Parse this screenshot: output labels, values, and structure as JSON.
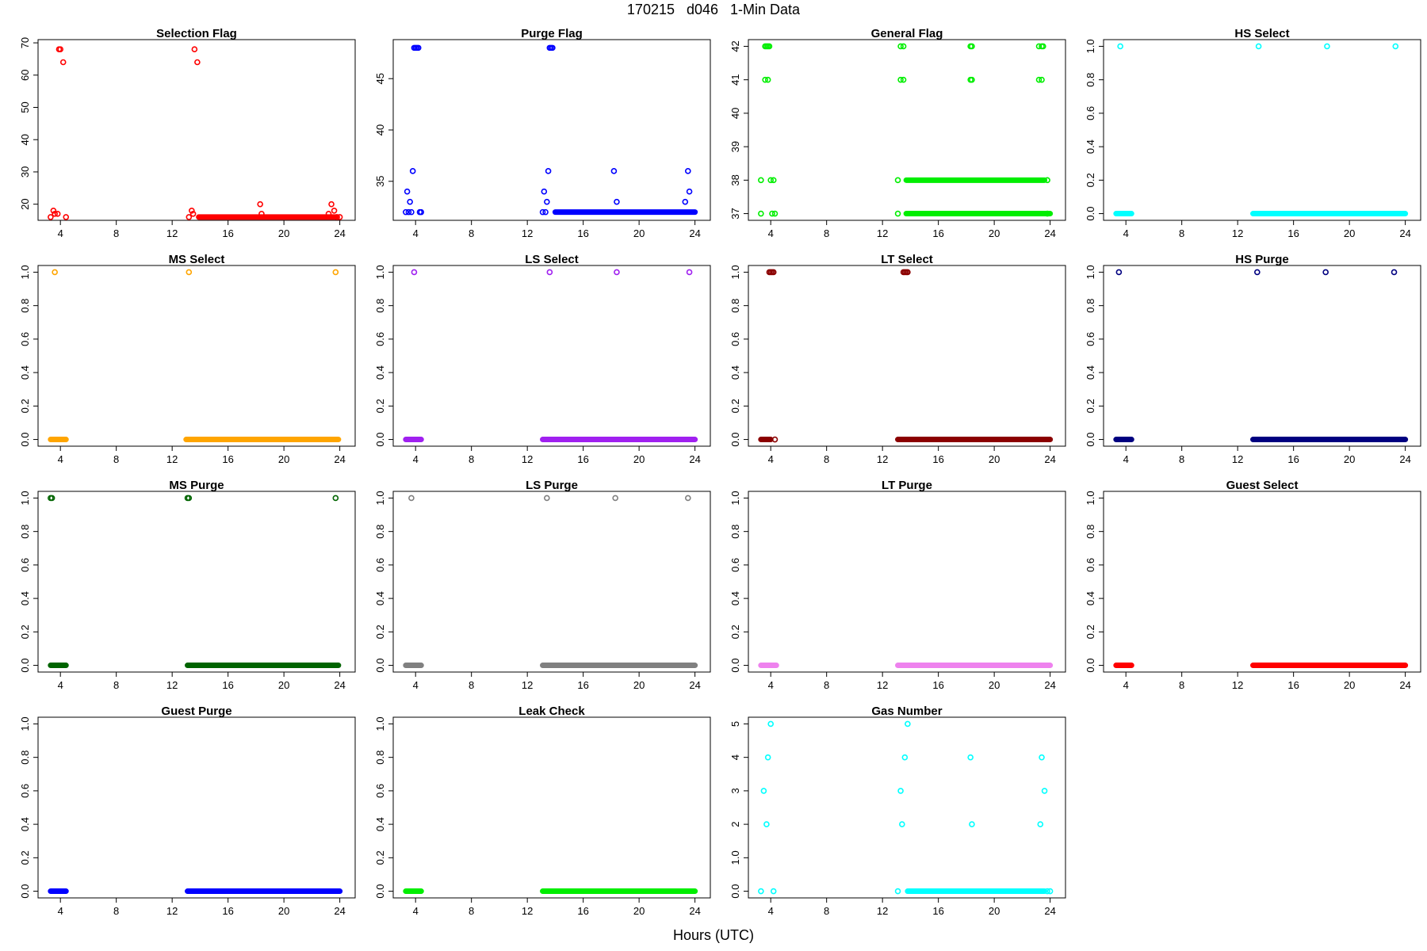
{
  "figure": {
    "title": "170215   d046   1-Min Data",
    "xlabel": "Hours (UTC)"
  },
  "chart_data": [
    {
      "type": "scatter",
      "title": "Selection Flag",
      "color": "#ff0000",
      "xlim": [
        2.4,
        25.1
      ],
      "xticks": [
        4,
        8,
        12,
        16,
        20,
        24
      ],
      "ylim": [
        15,
        71
      ],
      "yticks": [
        20,
        30,
        40,
        50,
        60,
        70
      ],
      "series": [
        {
          "kind": "points",
          "x": [
            3.3,
            3.5,
            3.6,
            3.8,
            3.9,
            4.0,
            4.2,
            4.4,
            13.2,
            13.4,
            13.5,
            13.6,
            13.8,
            18.3,
            18.4,
            23.2,
            23.4,
            23.6,
            23.8,
            24.0
          ],
          "y": [
            16,
            18,
            17,
            17,
            68,
            68,
            64,
            16,
            16,
            18,
            17,
            68,
            64,
            20,
            17,
            17,
            20,
            18,
            16,
            16
          ]
        },
        {
          "kind": "band",
          "x0": 13.9,
          "x1": 23.8,
          "y": 16
        }
      ]
    },
    {
      "type": "scatter",
      "title": "Purge Flag",
      "color": "#0000ff",
      "xlim": [
        2.4,
        25.1
      ],
      "xticks": [
        4,
        8,
        12,
        16,
        20,
        24
      ],
      "ylim": [
        31.2,
        48.8
      ],
      "yticks": [
        35,
        40,
        45
      ],
      "series": [
        {
          "kind": "points",
          "x": [
            3.3,
            3.4,
            3.5,
            3.6,
            3.7,
            3.8,
            3.9,
            4.0,
            4.1,
            4.2,
            4.3,
            4.4,
            13.1,
            13.2,
            13.3,
            13.4,
            13.5,
            13.6,
            13.7,
            13.8,
            18.2,
            18.4,
            23.3,
            23.5,
            23.6
          ],
          "y": [
            32,
            34,
            32,
            33,
            32,
            36,
            48,
            48,
            48,
            48,
            32,
            32,
            32,
            34,
            32,
            33,
            36,
            48,
            48,
            48,
            36,
            33,
            33,
            36,
            34
          ]
        },
        {
          "kind": "band",
          "x0": 14.0,
          "x1": 24.0,
          "y": 32
        }
      ]
    },
    {
      "type": "scatter",
      "title": "General Flag",
      "color": "#00ee00",
      "xlim": [
        2.4,
        25.1
      ],
      "xticks": [
        4,
        8,
        12,
        16,
        20,
        24
      ],
      "ylim": [
        36.8,
        42.2
      ],
      "yticks": [
        37,
        38,
        39,
        40,
        41,
        42
      ],
      "series": [
        {
          "kind": "points",
          "x": [
            3.3,
            3.3,
            3.6,
            3.7,
            3.8,
            3.9,
            3.6,
            3.8,
            4.0,
            4.1,
            4.2,
            4.3,
            13.1,
            13.1,
            13.3,
            13.5,
            13.3,
            13.5,
            18.3,
            18.4,
            18.3,
            18.4,
            23.2,
            23.4,
            23.5,
            23.2,
            23.4,
            23.8,
            23.8
          ],
          "y": [
            38,
            37,
            42,
            42,
            42,
            42,
            41,
            41,
            38,
            37,
            38,
            37,
            38,
            37,
            42,
            42,
            41,
            41,
            42,
            42,
            41,
            41,
            42,
            42,
            42,
            41,
            41,
            38,
            37
          ]
        },
        {
          "kind": "band",
          "x0": 13.7,
          "x1": 23.6,
          "y": 38
        },
        {
          "kind": "band",
          "x0": 13.7,
          "x1": 24.0,
          "y": 37
        }
      ]
    },
    {
      "type": "scatter",
      "title": "HS Select",
      "color": "#00ffff",
      "xlim": [
        2.4,
        25.1
      ],
      "xticks": [
        4,
        8,
        12,
        16,
        20,
        24
      ],
      "ylim": [
        -0.04,
        1.04
      ],
      "yticks": [
        0,
        0.2,
        0.4,
        0.6,
        0.8,
        1.0
      ],
      "series": [
        {
          "kind": "points",
          "x": [
            3.6,
            13.5,
            18.4,
            23.3
          ],
          "y": [
            1,
            1,
            1,
            1
          ]
        },
        {
          "kind": "band",
          "x0": 3.3,
          "x1": 4.4,
          "y": 0
        },
        {
          "kind": "band",
          "x0": 13.1,
          "x1": 24.0,
          "y": 0
        }
      ]
    },
    {
      "type": "scatter",
      "title": "MS Select",
      "color": "#ffa500",
      "xlim": [
        2.4,
        25.1
      ],
      "xticks": [
        4,
        8,
        12,
        16,
        20,
        24
      ],
      "ylim": [
        -0.04,
        1.04
      ],
      "yticks": [
        0,
        0.2,
        0.4,
        0.6,
        0.8,
        1.0
      ],
      "series": [
        {
          "kind": "points",
          "x": [
            3.6,
            13.2,
            23.7
          ],
          "y": [
            1,
            1,
            1
          ]
        },
        {
          "kind": "band",
          "x0": 3.3,
          "x1": 4.4,
          "y": 0
        },
        {
          "kind": "band",
          "x0": 13.0,
          "x1": 23.9,
          "y": 0
        }
      ]
    },
    {
      "type": "scatter",
      "title": "LS Select",
      "color": "#a020f0",
      "xlim": [
        2.4,
        25.1
      ],
      "xticks": [
        4,
        8,
        12,
        16,
        20,
        24
      ],
      "ylim": [
        -0.04,
        1.04
      ],
      "yticks": [
        0,
        0.2,
        0.4,
        0.6,
        0.8,
        1.0
      ],
      "series": [
        {
          "kind": "points",
          "x": [
            3.9,
            13.6,
            18.4,
            23.6
          ],
          "y": [
            1,
            1,
            1,
            1
          ]
        },
        {
          "kind": "band",
          "x0": 3.3,
          "x1": 4.4,
          "y": 0
        },
        {
          "kind": "band",
          "x0": 13.1,
          "x1": 24.0,
          "y": 0
        }
      ]
    },
    {
      "type": "scatter",
      "title": "LT Select",
      "color": "#8b0000",
      "xlim": [
        2.4,
        25.1
      ],
      "xticks": [
        4,
        8,
        12,
        16,
        20,
        24
      ],
      "ylim": [
        -0.04,
        1.04
      ],
      "yticks": [
        0,
        0.2,
        0.4,
        0.6,
        0.8,
        1.0
      ],
      "series": [
        {
          "kind": "points",
          "x": [
            3.9,
            4.0,
            4.1,
            4.2,
            4.3,
            13.5,
            13.6,
            13.7,
            13.8
          ],
          "y": [
            1,
            1,
            1,
            1,
            0,
            1,
            1,
            1,
            1
          ]
        },
        {
          "kind": "band",
          "x0": 3.3,
          "x1": 4.0,
          "y": 0
        },
        {
          "kind": "band",
          "x0": 13.1,
          "x1": 24.0,
          "y": 0
        }
      ]
    },
    {
      "type": "scatter",
      "title": "HS Purge",
      "color": "#000080",
      "xlim": [
        2.4,
        25.1
      ],
      "xticks": [
        4,
        8,
        12,
        16,
        20,
        24
      ],
      "ylim": [
        -0.04,
        1.04
      ],
      "yticks": [
        0,
        0.2,
        0.4,
        0.6,
        0.8,
        1.0
      ],
      "series": [
        {
          "kind": "points",
          "x": [
            3.5,
            13.4,
            18.3,
            23.2
          ],
          "y": [
            1,
            1,
            1,
            1
          ]
        },
        {
          "kind": "band",
          "x0": 3.3,
          "x1": 4.4,
          "y": 0
        },
        {
          "kind": "band",
          "x0": 13.1,
          "x1": 24.0,
          "y": 0
        }
      ]
    },
    {
      "type": "scatter",
      "title": "MS Purge",
      "color": "#006400",
      "xlim": [
        2.4,
        25.1
      ],
      "xticks": [
        4,
        8,
        12,
        16,
        20,
        24
      ],
      "ylim": [
        -0.04,
        1.04
      ],
      "yticks": [
        0,
        0.2,
        0.4,
        0.6,
        0.8,
        1.0
      ],
      "series": [
        {
          "kind": "points",
          "x": [
            3.3,
            3.4,
            13.1,
            13.2,
            23.7
          ],
          "y": [
            1,
            1,
            1,
            1,
            1
          ]
        },
        {
          "kind": "band",
          "x0": 3.3,
          "x1": 4.4,
          "y": 0
        },
        {
          "kind": "band",
          "x0": 13.1,
          "x1": 23.9,
          "y": 0
        }
      ]
    },
    {
      "type": "scatter",
      "title": "LS Purge",
      "color": "#808080",
      "xlim": [
        2.4,
        25.1
      ],
      "xticks": [
        4,
        8,
        12,
        16,
        20,
        24
      ],
      "ylim": [
        -0.04,
        1.04
      ],
      "yticks": [
        0,
        0.2,
        0.4,
        0.6,
        0.8,
        1.0
      ],
      "series": [
        {
          "kind": "points",
          "x": [
            3.7,
            13.4,
            18.3,
            23.5
          ],
          "y": [
            1,
            1,
            1,
            1
          ]
        },
        {
          "kind": "band",
          "x0": 3.3,
          "x1": 4.4,
          "y": 0
        },
        {
          "kind": "band",
          "x0": 13.1,
          "x1": 24.0,
          "y": 0
        }
      ]
    },
    {
      "type": "scatter",
      "title": "LT Purge",
      "color": "#ee82ee",
      "xlim": [
        2.4,
        25.1
      ],
      "xticks": [
        4,
        8,
        12,
        16,
        20,
        24
      ],
      "ylim": [
        -0.04,
        1.04
      ],
      "yticks": [
        0,
        0.2,
        0.4,
        0.6,
        0.8,
        1.0
      ],
      "series": [
        {
          "kind": "band",
          "x0": 3.3,
          "x1": 4.4,
          "y": 0
        },
        {
          "kind": "band",
          "x0": 13.1,
          "x1": 24.0,
          "y": 0
        }
      ]
    },
    {
      "type": "scatter",
      "title": "Guest Select",
      "color": "#ff0000",
      "xlim": [
        2.4,
        25.1
      ],
      "xticks": [
        4,
        8,
        12,
        16,
        20,
        24
      ],
      "ylim": [
        -0.04,
        1.04
      ],
      "yticks": [
        0,
        0.2,
        0.4,
        0.6,
        0.8,
        1.0
      ],
      "series": [
        {
          "kind": "band",
          "x0": 3.3,
          "x1": 4.4,
          "y": 0
        },
        {
          "kind": "band",
          "x0": 13.1,
          "x1": 24.0,
          "y": 0
        }
      ]
    },
    {
      "type": "scatter",
      "title": "Guest Purge",
      "color": "#0000ff",
      "xlim": [
        2.4,
        25.1
      ],
      "xticks": [
        4,
        8,
        12,
        16,
        20,
        24
      ],
      "ylim": [
        -0.04,
        1.04
      ],
      "yticks": [
        0,
        0.2,
        0.4,
        0.6,
        0.8,
        1.0
      ],
      "series": [
        {
          "kind": "band",
          "x0": 3.3,
          "x1": 4.4,
          "y": 0
        },
        {
          "kind": "band",
          "x0": 13.1,
          "x1": 24.0,
          "y": 0
        }
      ]
    },
    {
      "type": "scatter",
      "title": "Leak Check",
      "color": "#00ee00",
      "xlim": [
        2.4,
        25.1
      ],
      "xticks": [
        4,
        8,
        12,
        16,
        20,
        24
      ],
      "ylim": [
        -0.04,
        1.04
      ],
      "yticks": [
        0,
        0.2,
        0.4,
        0.6,
        0.8,
        1.0
      ],
      "series": [
        {
          "kind": "band",
          "x0": 3.3,
          "x1": 4.4,
          "y": 0
        },
        {
          "kind": "band",
          "x0": 13.1,
          "x1": 24.0,
          "y": 0
        }
      ]
    },
    {
      "type": "scatter",
      "title": "Gas Number",
      "color": "#00ffff",
      "xlim": [
        2.4,
        25.1
      ],
      "xticks": [
        4,
        8,
        12,
        16,
        20,
        24
      ],
      "ylim": [
        -0.2,
        5.2
      ],
      "yticks": [
        0,
        1,
        2,
        3,
        4,
        5
      ],
      "series": [
        {
          "kind": "points",
          "x": [
            3.3,
            3.5,
            3.7,
            3.8,
            4.0,
            4.2,
            13.1,
            13.3,
            13.4,
            13.6,
            13.8,
            18.3,
            18.4,
            23.3,
            23.4,
            23.6,
            23.8,
            24.0
          ],
          "y": [
            0,
            3,
            2,
            4,
            5,
            0,
            0,
            3,
            2,
            4,
            5,
            4,
            2,
            2,
            4,
            3,
            0,
            0
          ]
        },
        {
          "kind": "band",
          "x0": 13.8,
          "x1": 23.6,
          "y": 0
        }
      ]
    }
  ]
}
